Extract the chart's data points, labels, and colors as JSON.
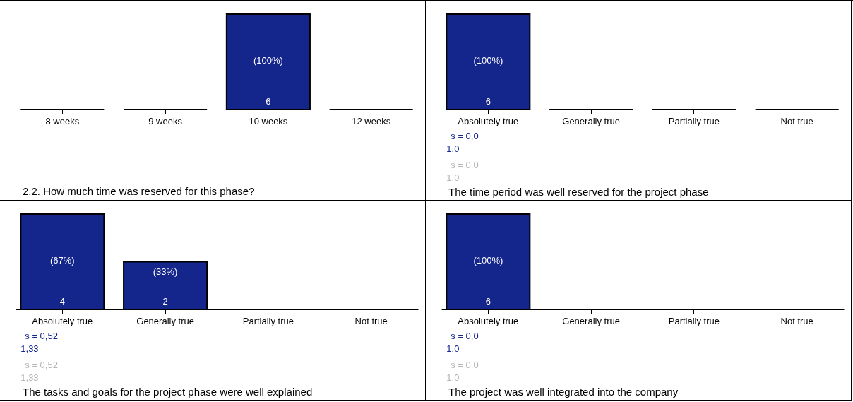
{
  "chart_data": [
    {
      "type": "bar",
      "title": "2.2. How much time was reserved for this phase?",
      "categories": [
        "8 weeks",
        "9 weeks",
        "10 weeks",
        "12 weeks"
      ],
      "values": [
        0,
        0,
        6,
        0
      ],
      "colors": [
        "#000000",
        "#000000",
        "#14258c",
        "#000000"
      ],
      "value_labels": [
        null,
        null,
        "6",
        null
      ],
      "annotations": [
        "(100%)"
      ]
    },
    {
      "type": "bar",
      "title": "The time period was well reserved for the project phase",
      "categories": [
        "Absolutely true",
        "Generally true",
        "Partially true",
        "Not true"
      ],
      "values": [
        6,
        0,
        0,
        0
      ],
      "colors": [
        "#14258c",
        "#000000",
        "#000000",
        "#000000"
      ],
      "value_labels": [
        "6",
        null,
        null,
        null
      ],
      "annotations": [
        "(100%)",
        "s = 0,0",
        "1,0",
        "s = 0,0",
        "1,0"
      ]
    },
    {
      "type": "bar",
      "title": "The tasks and goals for the project phase were well explained",
      "categories": [
        "Absolutely true",
        "Generally true",
        "Partially true",
        "Not true"
      ],
      "values": [
        4,
        2,
        0,
        0
      ],
      "colors": [
        "#14258c",
        "#14258c",
        "#000000",
        "#000000"
      ],
      "value_labels": [
        "4",
        "2",
        null,
        null
      ],
      "annotations": [
        "(67%)",
        "(33%)",
        "s = 0,52",
        "1,33",
        "s = 0,52",
        "1,33"
      ]
    },
    {
      "type": "bar",
      "title": "The project was well integrated into the company",
      "categories": [
        "Absolutely true",
        "Generally true",
        "Partially true",
        "Not true"
      ],
      "values": [
        6,
        0,
        0,
        0
      ],
      "colors": [
        "#14258c",
        "#000000",
        "#000000",
        "#000000"
      ],
      "value_labels": [
        "6",
        null,
        null,
        null
      ],
      "annotations": [
        "(100%)",
        "s = 0,0",
        "1,0",
        "s = 0,0",
        "1,0"
      ]
    }
  ]
}
